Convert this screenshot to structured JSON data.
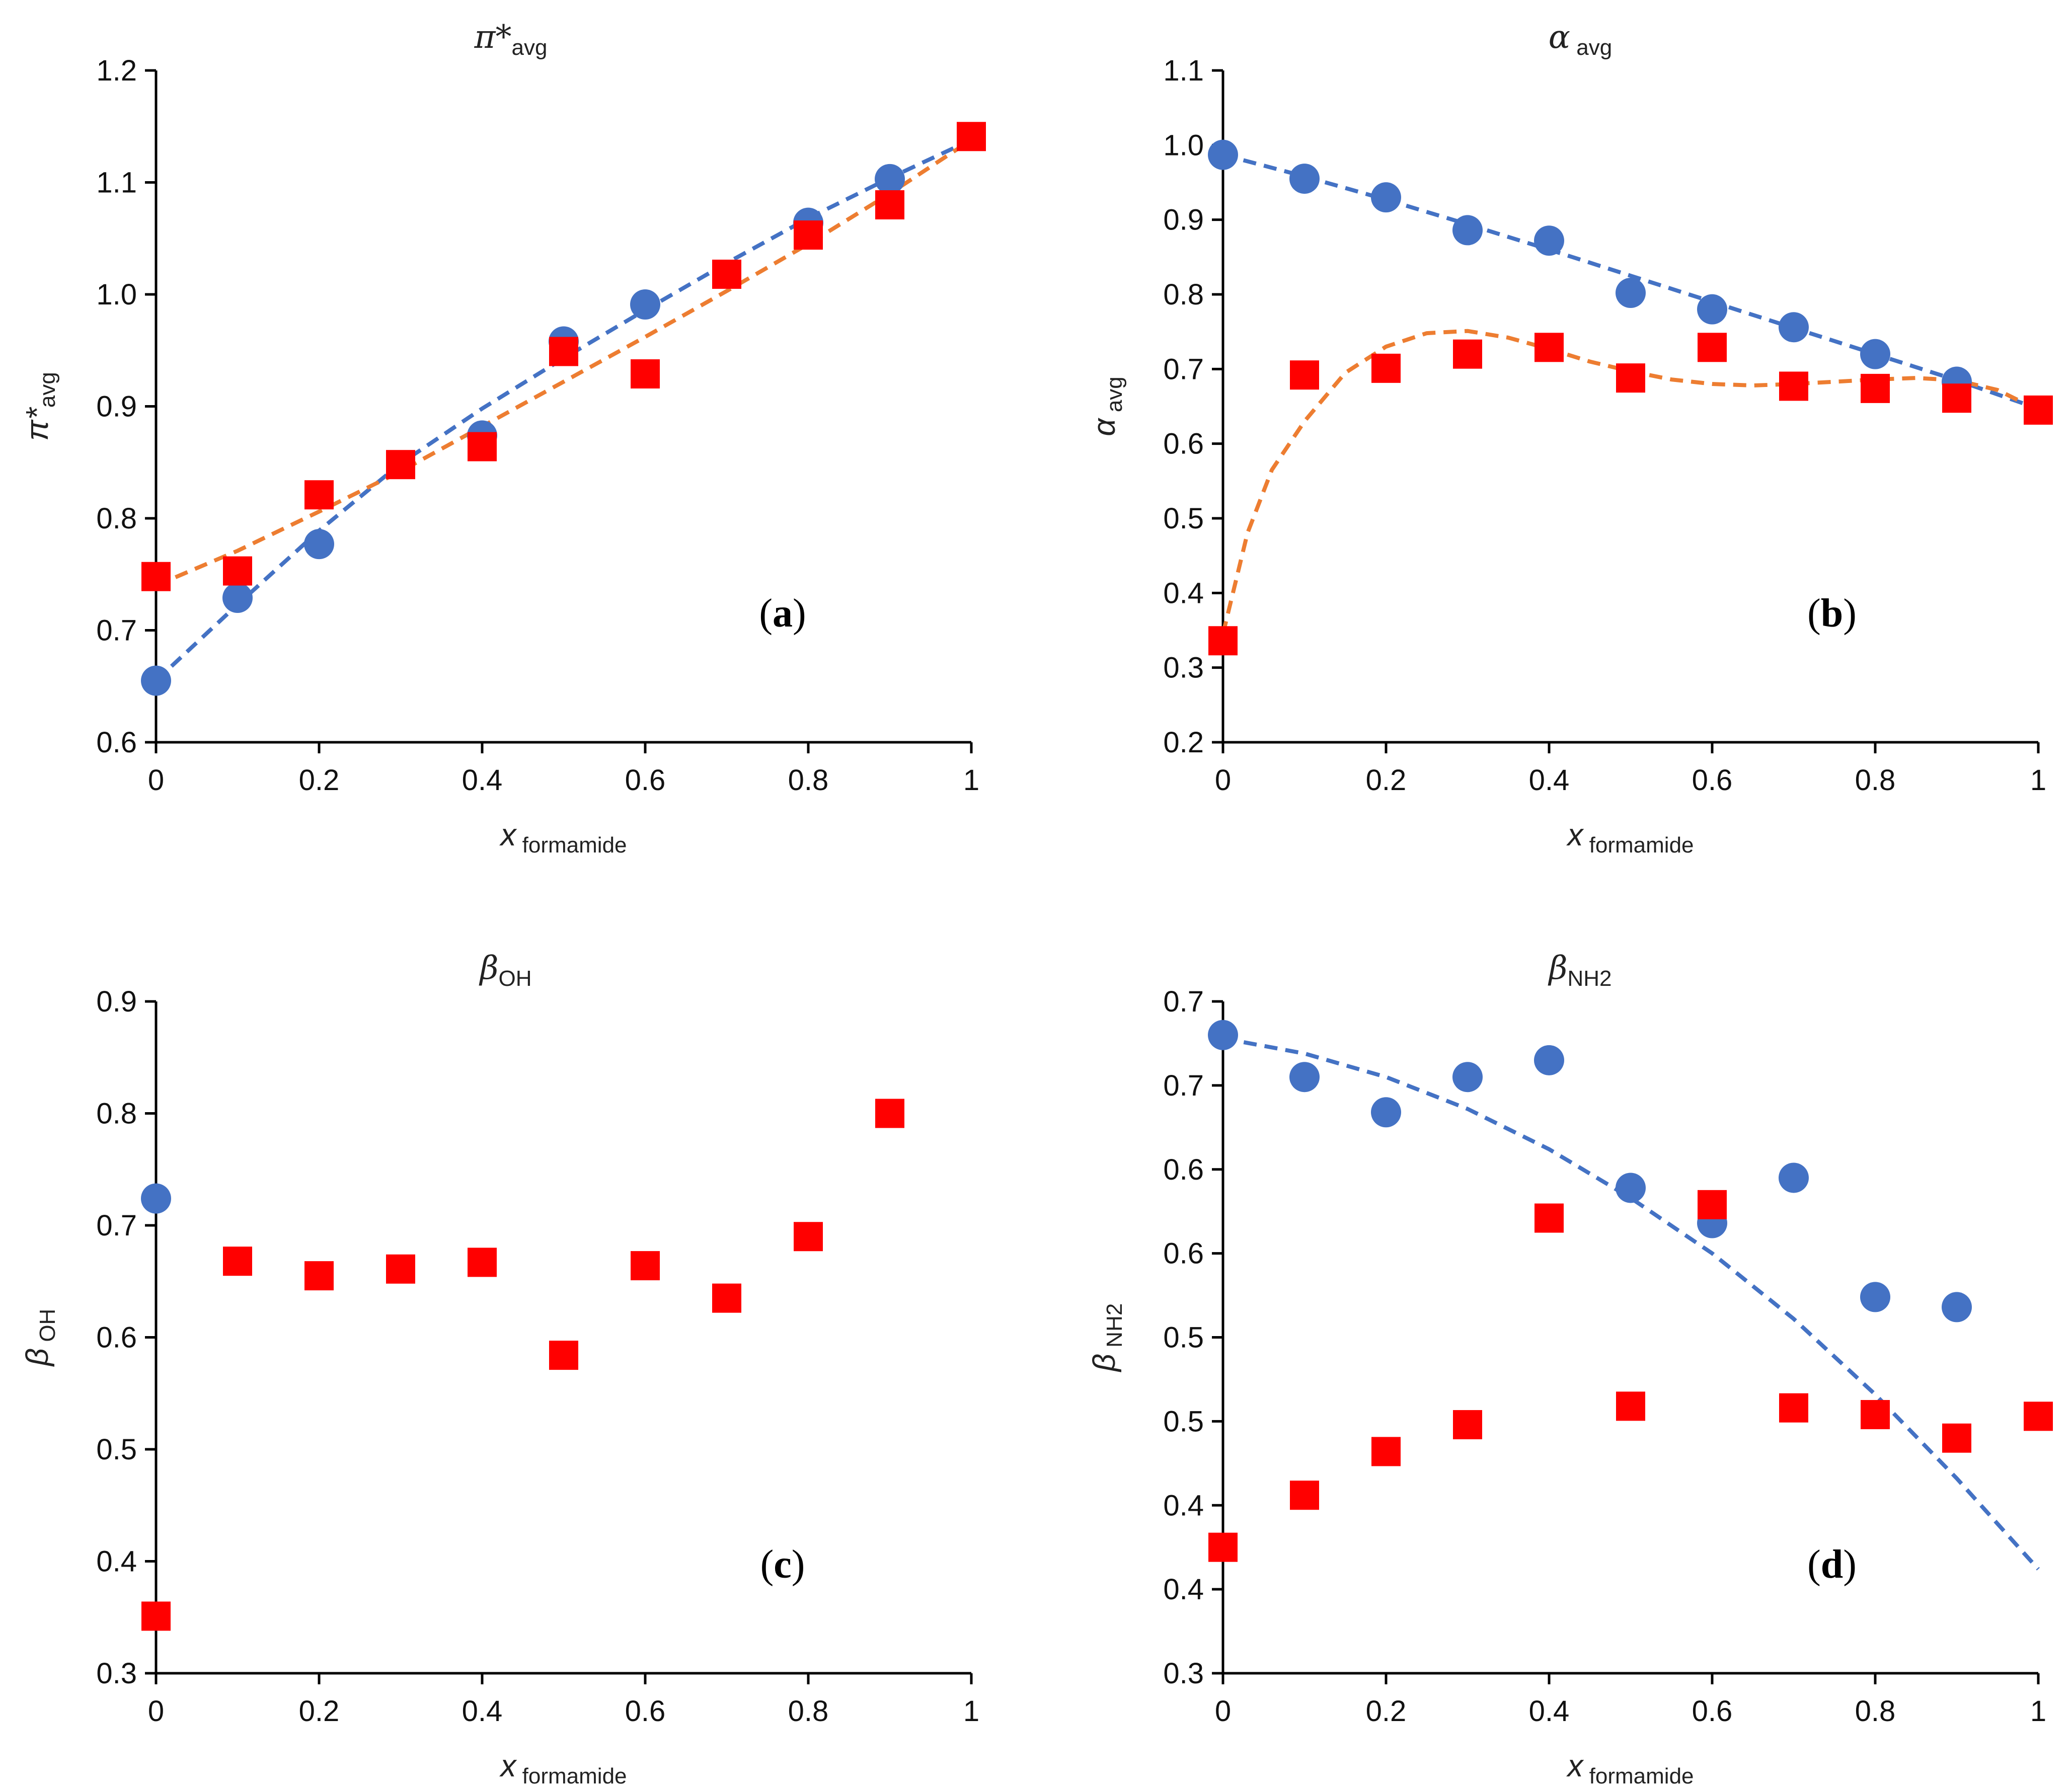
{
  "figure": {
    "colors": {
      "circle": "#4472C4",
      "square": "#FF0000",
      "fit_blue": "#4472C4",
      "fit_orange": "#ED7D31"
    }
  },
  "chart_data": [
    {
      "type": "scatter",
      "panel_letter": "a",
      "title_main": "π*",
      "title_sub": "avg",
      "ylabel_main": "π*",
      "ylabel_sub": "avg",
      "xlabel_main": "x",
      "xlabel_sub": " formamide",
      "xlim": [
        0,
        1
      ],
      "ylim": [
        0.6,
        1.2
      ],
      "xticks": [
        0,
        0.2,
        0.4,
        0.6,
        0.8,
        1
      ],
      "xtick_labels": [
        "0",
        "0.2",
        "0.4",
        "0.6",
        "0.8",
        "1"
      ],
      "yticks": [
        0.6,
        0.7,
        0.8,
        0.9,
        1.0,
        1.1,
        1.2
      ],
      "ytick_labels": [
        "0.6",
        "0.7",
        "0.8",
        "0.9",
        "1.0",
        "1.1",
        "1.2"
      ],
      "grid": false,
      "series": [
        {
          "marker": "circle",
          "color": "#4472C4",
          "x": [
            0,
            0.1,
            0.2,
            0.4,
            0.5,
            0.6,
            0.8,
            0.9
          ],
          "y": [
            0.655,
            0.729,
            0.777,
            0.874,
            0.958,
            0.991,
            1.064,
            1.103
          ]
        },
        {
          "marker": "square",
          "color": "#FF0000",
          "x": [
            0,
            0.1,
            0.2,
            0.3,
            0.4,
            0.5,
            0.6,
            0.7,
            0.8,
            0.9,
            1
          ],
          "y": [
            0.748,
            0.753,
            0.821,
            0.848,
            0.864,
            0.949,
            0.929,
            1.018,
            1.053,
            1.08,
            1.141
          ]
        }
      ],
      "fits": [
        {
          "style": "dashed",
          "color": "#4472C4",
          "x": [
            0,
            0.1,
            0.2,
            0.3,
            0.4,
            0.5,
            0.6,
            0.7,
            0.8,
            0.9,
            1
          ],
          "y": [
            0.655,
            0.723,
            0.789,
            0.849,
            0.898,
            0.943,
            0.986,
            1.028,
            1.068,
            1.104,
            1.138
          ]
        },
        {
          "style": "dashed",
          "color": "#ED7D31",
          "x": [
            0,
            0.1,
            0.2,
            0.3,
            0.4,
            0.5,
            0.6,
            0.7,
            0.8,
            0.9,
            1
          ],
          "y": [
            0.74,
            0.771,
            0.806,
            0.842,
            0.882,
            0.922,
            0.962,
            1.003,
            1.045,
            1.09,
            1.138
          ]
        }
      ]
    },
    {
      "type": "scatter",
      "panel_letter": "b",
      "title_main": "α",
      "title_sub": " avg",
      "ylabel_main": "α",
      "ylabel_sub": " avg",
      "xlabel_main": "x",
      "xlabel_sub": " formamide",
      "xlim": [
        0,
        1
      ],
      "ylim": [
        0.2,
        1.1
      ],
      "xticks": [
        0,
        0.2,
        0.4,
        0.6,
        0.8,
        1
      ],
      "xtick_labels": [
        "0",
        "0.2",
        "0.4",
        "0.6",
        "0.8",
        "1"
      ],
      "yticks": [
        0.2,
        0.3,
        0.4,
        0.5,
        0.6,
        0.7,
        0.8,
        0.9,
        1.0,
        1.1
      ],
      "ytick_labels": [
        "0.2",
        "0.3",
        "0.4",
        "0.5",
        "0.6",
        "0.7",
        "0.8",
        "0.9",
        "1.0",
        "1.1"
      ],
      "grid": false,
      "series": [
        {
          "marker": "circle",
          "color": "#4472C4",
          "x": [
            0,
            0.1,
            0.2,
            0.3,
            0.4,
            0.5,
            0.6,
            0.7,
            0.8,
            0.9
          ],
          "y": [
            0.987,
            0.955,
            0.93,
            0.886,
            0.872,
            0.802,
            0.78,
            0.756,
            0.72,
            0.683
          ]
        },
        {
          "marker": "square",
          "color": "#FF0000",
          "x": [
            0,
            0.1,
            0.2,
            0.3,
            0.4,
            0.5,
            0.6,
            0.7,
            0.8,
            0.9,
            1
          ],
          "y": [
            0.336,
            0.692,
            0.701,
            0.72,
            0.729,
            0.688,
            0.729,
            0.677,
            0.674,
            0.661,
            0.645
          ]
        }
      ],
      "fits": [
        {
          "style": "dashed",
          "color": "#4472C4",
          "x": [
            0,
            0.1,
            0.2,
            0.3,
            0.4,
            0.5,
            0.6,
            0.7,
            0.8,
            0.9,
            1
          ],
          "y": [
            0.987,
            0.958,
            0.927,
            0.894,
            0.86,
            0.825,
            0.79,
            0.755,
            0.72,
            0.685,
            0.647
          ]
        },
        {
          "style": "dashed",
          "color": "#ED7D31",
          "x": [
            0,
            0.03,
            0.06,
            0.1,
            0.15,
            0.2,
            0.25,
            0.3,
            0.35,
            0.4,
            0.45,
            0.5,
            0.55,
            0.6,
            0.65,
            0.7,
            0.75,
            0.8,
            0.85,
            0.9,
            0.95,
            1
          ],
          "y": [
            0.345,
            0.48,
            0.565,
            0.63,
            0.695,
            0.73,
            0.748,
            0.751,
            0.742,
            0.727,
            0.71,
            0.697,
            0.686,
            0.68,
            0.678,
            0.68,
            0.683,
            0.686,
            0.688,
            0.685,
            0.672,
            0.645
          ]
        }
      ]
    },
    {
      "type": "scatter",
      "panel_letter": "c",
      "title_main": "β",
      "title_sub": "OH",
      "ylabel_main": "β",
      "ylabel_sub": " OH",
      "xlabel_main": "x",
      "xlabel_sub": " formamide",
      "xlim": [
        0,
        1
      ],
      "ylim": [
        0.3,
        0.9
      ],
      "xticks": [
        0,
        0.2,
        0.4,
        0.6,
        0.8,
        1
      ],
      "xtick_labels": [
        "0",
        "0.2",
        "0.4",
        "0.6",
        "0.8",
        "1"
      ],
      "yticks": [
        0.3,
        0.4,
        0.5,
        0.6,
        0.7,
        0.8,
        0.9
      ],
      "ytick_labels": [
        "0.3",
        "0.4",
        "0.5",
        "0.6",
        "0.7",
        "0.8",
        "0.9"
      ],
      "grid": false,
      "series": [
        {
          "marker": "circle",
          "color": "#4472C4",
          "x": [
            0
          ],
          "y": [
            0.724
          ]
        },
        {
          "marker": "square",
          "color": "#FF0000",
          "x": [
            0,
            0.1,
            0.2,
            0.3,
            0.4,
            0.5,
            0.6,
            0.7,
            0.8,
            0.9
          ],
          "y": [
            0.351,
            0.668,
            0.655,
            0.661,
            0.667,
            0.584,
            0.664,
            0.635,
            0.69,
            0.8
          ]
        }
      ],
      "fits": []
    },
    {
      "type": "scatter",
      "panel_letter": "d",
      "title_main": "β",
      "title_sub": "NH2",
      "ylabel_main": "β",
      "ylabel_sub": " NH2",
      "xlabel_main": "x",
      "xlabel_sub": " formamide",
      "xlim": [
        0,
        1
      ],
      "ylim": [
        0.3,
        0.7
      ],
      "xticks": [
        0,
        0.2,
        0.4,
        0.6,
        0.8,
        1
      ],
      "xtick_labels": [
        "0",
        "0.2",
        "0.4",
        "0.6",
        "0.8",
        "1"
      ],
      "yticks": [
        0.3,
        0.35,
        0.4,
        0.45,
        0.5,
        0.55,
        0.6,
        0.65,
        0.7
      ],
      "ytick_labels": [
        "0.3",
        "0.4",
        "0.4",
        "0.5",
        "0.5",
        "0.6",
        "0.6",
        "0.7",
        "0.7"
      ],
      "grid": false,
      "series": [
        {
          "marker": "circle",
          "color": "#4472C4",
          "x": [
            0,
            0.1,
            0.2,
            0.3,
            0.4,
            0.5,
            0.6,
            0.7,
            0.8,
            0.9
          ],
          "y": [
            0.68,
            0.655,
            0.634,
            0.655,
            0.665,
            0.589,
            0.568,
            0.595,
            0.524,
            0.518
          ]
        },
        {
          "marker": "square",
          "color": "#FF0000",
          "x": [
            0,
            0.1,
            0.2,
            0.3,
            0.4,
            0.5,
            0.6,
            0.7,
            0.8,
            0.9,
            1
          ],
          "y": [
            0.375,
            0.406,
            0.432,
            0.448,
            0.571,
            0.459,
            0.579,
            0.458,
            0.454,
            0.44,
            0.453
          ]
        }
      ],
      "fits": [
        {
          "style": "dashed",
          "color": "#4472C4",
          "x": [
            0,
            0.1,
            0.2,
            0.3,
            0.4,
            0.5,
            0.6,
            0.7,
            0.8,
            0.9,
            1
          ],
          "y": [
            0.678,
            0.669,
            0.655,
            0.636,
            0.612,
            0.583,
            0.55,
            0.511,
            0.466,
            0.416,
            0.362
          ]
        }
      ]
    }
  ]
}
